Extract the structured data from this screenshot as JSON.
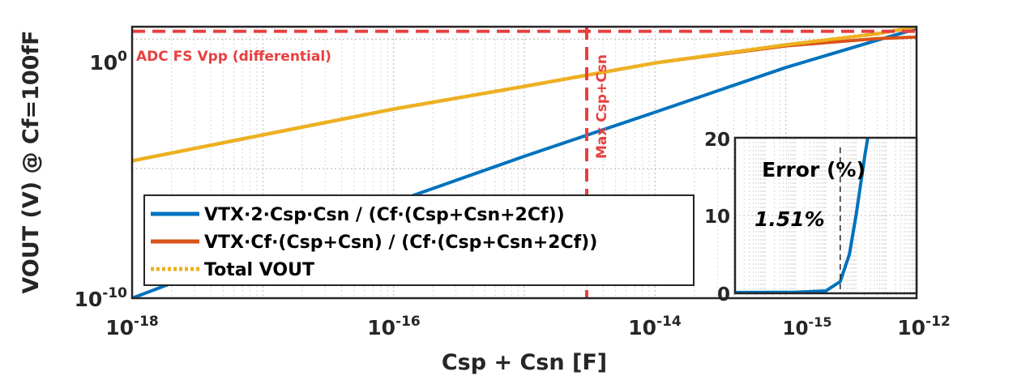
{
  "chart_data": {
    "type": "line",
    "x_scale": "log",
    "y_scale": "log",
    "xlim": [
      1e-18,
      1e-12
    ],
    "ylim": [
      1e-10,
      3
    ],
    "xlabel": "Csp + Csn [F]",
    "ylabel": "VOUT (V) @ Cf=100fF",
    "x_ticks": [
      {
        "value": 1e-18,
        "base": "10",
        "exp": "-18"
      },
      {
        "value": 1e-16,
        "base": "10",
        "exp": "-16"
      },
      {
        "value": 1e-14,
        "base": "10",
        "exp": "-14"
      },
      {
        "value": 1e-12,
        "base": "10",
        "exp": "-12"
      }
    ],
    "y_ticks": [
      {
        "value": 1e-10,
        "base": "10",
        "exp": "-10"
      },
      {
        "value": 1,
        "base": "10",
        "exp": "0"
      }
    ],
    "grid": true,
    "legend": {
      "placement": "lower-left",
      "entries": [
        {
          "label": "VTX·2·Csp·Csn / (Cf·(Csp+Csn+2Cf))",
          "color": "#0072BD",
          "style": "solid"
        },
        {
          "label": "VTX·Cf·(Csp+Csn) / (Cf·(Csp+Csn+2Cf))",
          "color": "#D95319",
          "style": "solid"
        },
        {
          "label": "Total VOUT",
          "color": "#EDB120",
          "style": "dotted"
        }
      ]
    },
    "series": [
      {
        "name": "VTX·2·Csp·Csn / (Cf·(Csp+Csn+2Cf))",
        "color": "#0072BD",
        "x": [
          1e-18,
          1e-17,
          1e-16,
          1e-15,
          1e-14,
          1e-13,
          5e-13,
          1e-12
        ],
        "y": [
          1e-10,
          8e-09,
          5e-07,
          3e-05,
          0.0015,
          0.08,
          0.9,
          2.5
        ]
      },
      {
        "name": "VTX·Cf·(Csp+Csn) / (Cf·(Csp+Csn+2Cf))",
        "color": "#D95319",
        "x": [
          1e-18,
          1e-17,
          1e-16,
          1e-15,
          1e-14,
          1e-13,
          5e-13,
          1e-12
        ],
        "y": [
          2e-05,
          0.0002,
          0.002,
          0.015,
          0.12,
          0.55,
          1.05,
          1.2
        ]
      },
      {
        "name": "Total VOUT",
        "color": "#EDB120",
        "x": [
          1e-18,
          1e-17,
          1e-16,
          1e-15,
          1e-14,
          1e-13,
          5e-13,
          1e-12
        ],
        "y": [
          2e-05,
          0.0002,
          0.002,
          0.015,
          0.12,
          0.6,
          1.6,
          3.0
        ]
      }
    ],
    "reference_lines": [
      {
        "orientation": "horizontal",
        "value": 2,
        "label": "ADC FS Vpp (differential)",
        "color": "#E8403F",
        "style": "dashed"
      },
      {
        "orientation": "vertical",
        "value": 3e-15,
        "label": "Max Csp+Csn",
        "color": "#E8403F",
        "style": "dashed"
      }
    ],
    "inset": {
      "title": "Error (%)",
      "x_scale": "log",
      "xlim": [
        1e-18,
        1e-12
      ],
      "ylim": [
        0,
        20
      ],
      "x_ticks": [
        {
          "value": 1e-15,
          "base": "10",
          "exp": "-15"
        },
        {
          "value": 1e-12,
          "base": "10",
          "exp": "-12"
        }
      ],
      "y_ticks": [
        0,
        10,
        20
      ],
      "annotation": "1.51%",
      "marker_x": 3e-15,
      "series": {
        "color": "#0072BD",
        "x": [
          1e-18,
          1e-16,
          1e-15,
          3e-15,
          6e-15,
          1e-14,
          2e-14,
          3e-14
        ],
        "y": [
          0.1,
          0.15,
          0.3,
          1.51,
          5,
          10,
          18,
          22
        ]
      }
    }
  }
}
